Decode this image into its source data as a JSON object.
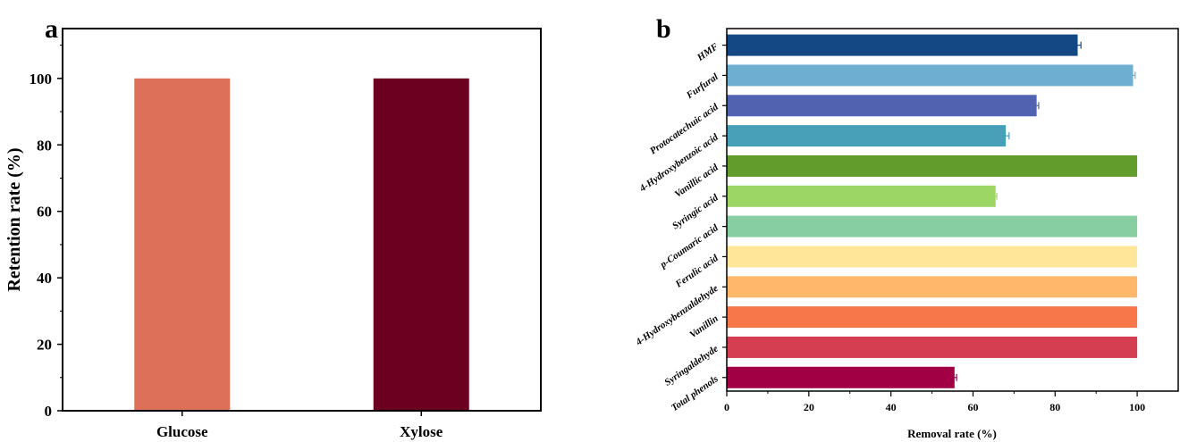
{
  "chart_data": [
    {
      "panel": "a",
      "type": "bar",
      "categories": [
        "Glucose",
        "Xylose"
      ],
      "values": [
        100,
        100
      ],
      "colors": [
        "#dd7059",
        "#6b0020"
      ],
      "ylabel": "Retention rate (%)",
      "xlabel": "",
      "ylim": [
        0,
        115
      ],
      "yticks": [
        0,
        20,
        40,
        60,
        80,
        100
      ]
    },
    {
      "panel": "b",
      "type": "bar",
      "orientation": "horizontal",
      "categories": [
        "HMF",
        "Furfural",
        "Protocatechuic acid",
        "4-Hydroxybenzoic acid",
        "Vanillic acid",
        "Syringic acid",
        "p-Coumaric acid",
        "Ferulic acid",
        "4-Hydroxybenzaldehyde",
        "Vanillin",
        "Syringaldehyde",
        "Total phenols"
      ],
      "values": [
        85.5,
        99.0,
        75.5,
        68.0,
        100,
        65.5,
        100,
        100,
        100,
        100,
        100,
        55.5
      ],
      "errors": [
        0.8,
        0.5,
        0.5,
        0.8,
        0,
        0.3,
        0,
        0,
        0,
        0,
        0,
        0.5
      ],
      "colors": [
        "#134884",
        "#6eaed1",
        "#5062b0",
        "#479fb8",
        "#629c2c",
        "#9cd664",
        "#87cfa2",
        "#ffe699",
        "#ffb86b",
        "#f7764a",
        "#d43e50",
        "#a10044"
      ],
      "xlabel": "Removal rate (%)",
      "ylabel": "",
      "xlim": [
        0,
        110
      ],
      "xticks": [
        0,
        20,
        40,
        60,
        80,
        100
      ]
    }
  ],
  "panel_labels": [
    "a",
    "b"
  ]
}
